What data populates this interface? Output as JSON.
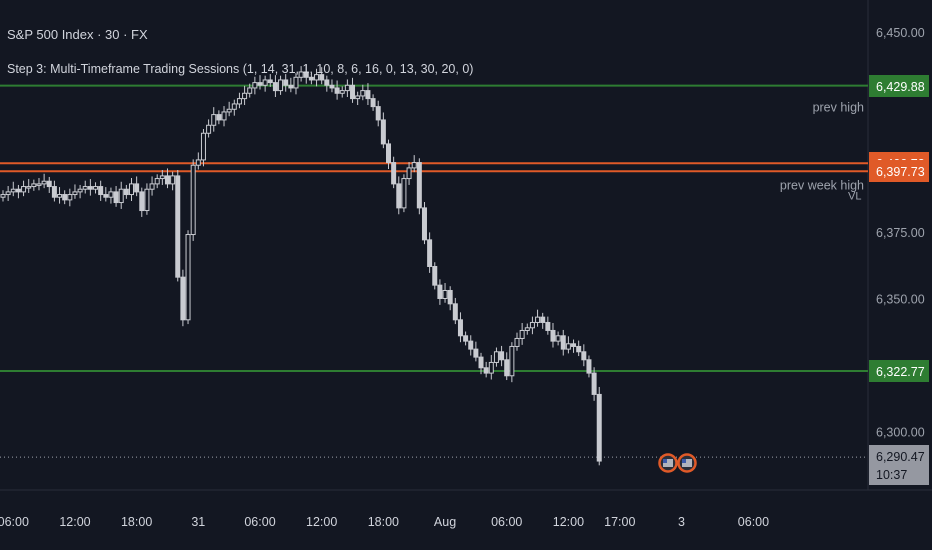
{
  "header": {
    "title": "S&P 500 Index · 30 · FX",
    "study": "Step 3: Multi-Timeframe Trading Sessions (1, 14, 31, 1, 10, 8, 6, 16, 0, 13, 30, 20, 0)"
  },
  "colors": {
    "background": "#131722",
    "candle": "#c9cbd1",
    "level_green": "#2e7d32",
    "level_orange": "#e05a28",
    "price_tag": "#9598a1",
    "text": "#d1d4dc",
    "label": "#9ea3ad"
  },
  "chart_data": {
    "type": "candlestick",
    "symbol": "S&P 500 Index",
    "interval": "30",
    "source": "FX",
    "y_ticks": [
      "6,450.00",
      "6,375.00",
      "6,350.00",
      "6,300.00"
    ],
    "ylim": [
      6278,
      6459
    ],
    "x_ticks": [
      {
        "label": "06:00",
        "bar": 2
      },
      {
        "label": "12:00",
        "bar": 14
      },
      {
        "label": "18:00",
        "bar": 26
      },
      {
        "label": "31",
        "bar": 38
      },
      {
        "label": "06:00",
        "bar": 50
      },
      {
        "label": "12:00",
        "bar": 62
      },
      {
        "label": "18:00",
        "bar": 74
      },
      {
        "label": "Aug",
        "bar": 86
      },
      {
        "label": "06:00",
        "bar": 98
      },
      {
        "label": "12:00",
        "bar": 110
      },
      {
        "label": "17:00",
        "bar": 120
      },
      {
        "label": "3",
        "bar": 132
      },
      {
        "label": "06:00",
        "bar": 146
      }
    ],
    "levels": [
      {
        "value": 6429.88,
        "label": "6,429.88",
        "color": "green",
        "text": ""
      },
      {
        "value": 6400.73,
        "label": "6,400.73",
        "color": "orange",
        "text": "prev high"
      },
      {
        "value": 6397.73,
        "label": "6,397.73",
        "color": "orange",
        "text": "prev week high"
      },
      {
        "value": 6322.77,
        "label": "6,322.77",
        "color": "green",
        "text": ""
      }
    ],
    "last_price": {
      "value": 6290.47,
      "label": "6,290.47",
      "countdown": "10:37"
    },
    "level_suffix": "VL",
    "event_markers": 2,
    "closes": [
      6389,
      6390,
      6391,
      6390,
      6392,
      6392,
      6393,
      6393,
      6394,
      6392,
      6388,
      6389,
      6387,
      6389,
      6390,
      6391,
      6392,
      6391,
      6392,
      6389,
      6388,
      6390,
      6386,
      6391,
      6389,
      6393,
      6390,
      6383,
      6391,
      6393,
      6395,
      6396,
      6393,
      6396,
      6358,
      6342,
      6374,
      6400,
      6402,
      6412,
      6415,
      6419,
      6417,
      6420,
      6421,
      6423,
      6425,
      6427,
      6429,
      6431,
      6430,
      6432,
      6431,
      6428,
      6432,
      6430,
      6429,
      6433,
      6435,
      6433,
      6432,
      6434,
      6432,
      6430,
      6429,
      6427,
      6428,
      6430,
      6425,
      6426,
      6428,
      6425,
      6422,
      6417,
      6408,
      6401,
      6393,
      6384,
      6395,
      6399,
      6401,
      6384,
      6372,
      6362,
      6355,
      6350,
      6353,
      6348,
      6342,
      6336,
      6334,
      6331,
      6328,
      6324,
      6322,
      6326,
      6330,
      6327,
      6321,
      6332,
      6335,
      6338,
      6339,
      6341,
      6343,
      6341,
      6338,
      6334,
      6336,
      6331,
      6333,
      6332,
      6330,
      6327,
      6322,
      6314,
      6289
    ]
  }
}
